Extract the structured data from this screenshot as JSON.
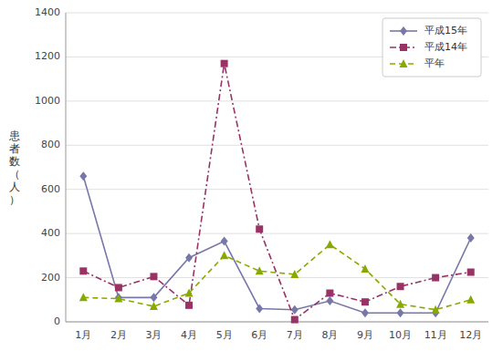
{
  "chart_data": {
    "type": "line",
    "y_label": "患\n者\n数\n（\n人\n）",
    "categories": [
      "1月",
      "2月",
      "3月",
      "4月",
      "5月",
      "6月",
      "7月",
      "8月",
      "9月",
      "10月",
      "11月",
      "12月"
    ],
    "series": [
      {
        "name": "平成15年",
        "color": "#7777aa",
        "marker": "diamond",
        "line_style": "solid",
        "values": [
          660,
          110,
          110,
          290,
          365,
          60,
          55,
          95,
          40,
          40,
          40,
          380
        ]
      },
      {
        "name": "平成14年",
        "color": "#993366",
        "marker": "square",
        "line_style": "dashdot",
        "values": [
          230,
          155,
          205,
          75,
          1170,
          420,
          10,
          130,
          90,
          160,
          200,
          225
        ]
      },
      {
        "name": "平年",
        "color": "#88aa00",
        "marker": "triangle",
        "line_style": "dashed",
        "values": [
          110,
          105,
          70,
          130,
          300,
          230,
          215,
          350,
          240,
          80,
          55,
          100
        ]
      }
    ],
    "ylim": [
      0,
      1400
    ],
    "yticks": [
      0,
      200,
      400,
      600,
      800,
      1000,
      1200,
      1400
    ],
    "grid": true,
    "legend": "upper right"
  }
}
